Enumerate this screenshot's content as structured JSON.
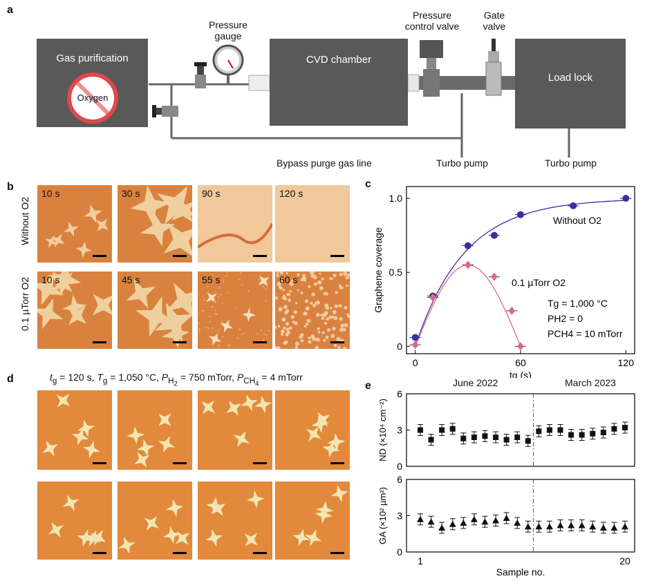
{
  "panel_a": {
    "letter": "a",
    "gas_purification": "Gas purification",
    "oxygen": "Oxygen",
    "pressure_gauge": [
      "Pressure",
      "gauge"
    ],
    "cvd_chamber": "CVD chamber",
    "pressure_control_valve": [
      "Pressure",
      "control valve"
    ],
    "gate_valve": [
      "Gate",
      "valve"
    ],
    "load_lock": "Load lock",
    "bypass_line": "Bypass purge gas line",
    "turbo_pump_1": "Turbo pump",
    "turbo_pump_2": "Turbo pump"
  },
  "panel_b": {
    "letter": "b",
    "row_without": "Without O2",
    "row_with": "0.1 µTorr O2",
    "tiles_top": [
      "10 s",
      "30 s",
      "90 s",
      "120 s"
    ],
    "tiles_bottom": [
      "10 s",
      "45 s",
      "55 s",
      "60 s"
    ]
  },
  "panel_c": {
    "letter": "c",
    "chart_data": {
      "type": "scatter",
      "xlabel": "tg (s)",
      "ylabel": "Graphene coverage",
      "xlim": [
        -5,
        125
      ],
      "ylim": [
        -0.05,
        1.08
      ],
      "xticks": [
        0,
        60,
        120
      ],
      "yticks": [
        0,
        0.5,
        1.0
      ],
      "ytick_labels": [
        "0",
        "0.5",
        "1.0"
      ],
      "series": [
        {
          "name": "Without O2",
          "color": "#3a2ea8",
          "x": [
            0,
            10,
            30,
            45,
            60,
            90,
            120
          ],
          "y": [
            0.06,
            0.34,
            0.68,
            0.75,
            0.89,
            0.95,
            1.0
          ]
        },
        {
          "name": "0.1 µTorr O2",
          "color": "#d9688f",
          "x": [
            0,
            10,
            30,
            45,
            55,
            60
          ],
          "y": [
            0.01,
            0.33,
            0.55,
            0.47,
            0.24,
            0.0
          ]
        }
      ],
      "annotations": [
        "Tg = 1,000 °C",
        "PH2 = 0",
        "PCH4 = 10 mTorr"
      ]
    }
  },
  "panel_d": {
    "letter": "d",
    "caption_parts": {
      "tg": "t",
      "tg_sub": "g",
      "tg_val": " = 120 s, ",
      "Tg": "T",
      "Tg_sub": "g",
      "Tg_val": " = 1,050 °C, ",
      "PH2": "P",
      "PH2_sub": "H",
      "PH2_subsub": "2",
      "PH2_val": " = 750 mTorr, ",
      "PCH4": "P",
      "PCH4_sub": "CH",
      "PCH4_subsub": "4",
      "PCH4_val": " = 4 mTorr"
    }
  },
  "panel_e": {
    "letter": "e",
    "label_left": "June 2022",
    "label_right": "March 2023",
    "chart_data": [
      {
        "type": "scatter",
        "ylabel": "ND (×10⁴ cm⁻²)",
        "ylim": [
          0,
          6
        ],
        "yticks": [
          0,
          3,
          6
        ],
        "x": [
          1,
          2,
          3,
          4,
          5,
          6,
          7,
          8,
          9,
          10,
          11,
          12,
          13,
          14,
          15,
          16,
          17,
          18,
          19,
          20
        ],
        "y": [
          3.0,
          2.2,
          3.0,
          3.1,
          2.3,
          2.4,
          2.5,
          2.4,
          2.2,
          2.4,
          2.1,
          2.9,
          3.0,
          3.0,
          2.6,
          2.6,
          2.7,
          2.8,
          3.1,
          3.2
        ]
      },
      {
        "type": "scatter",
        "ylabel": "GA (×10² µm²)",
        "ylim": [
          0,
          6
        ],
        "yticks": [
          0,
          3,
          6
        ],
        "x": [
          1,
          2,
          3,
          4,
          5,
          6,
          7,
          8,
          9,
          10,
          11,
          12,
          13,
          14,
          15,
          16,
          17,
          18,
          19,
          20
        ],
        "y": [
          2.7,
          2.5,
          2.0,
          2.3,
          2.4,
          2.7,
          2.5,
          2.6,
          2.8,
          2.4,
          2.1,
          2.1,
          2.1,
          2.2,
          2.2,
          2.2,
          2.1,
          2.0,
          2.0,
          2.1
        ]
      }
    ],
    "xlabel": "Sample no.",
    "xticks": [
      "1",
      "20"
    ],
    "divider_after": 11
  }
}
